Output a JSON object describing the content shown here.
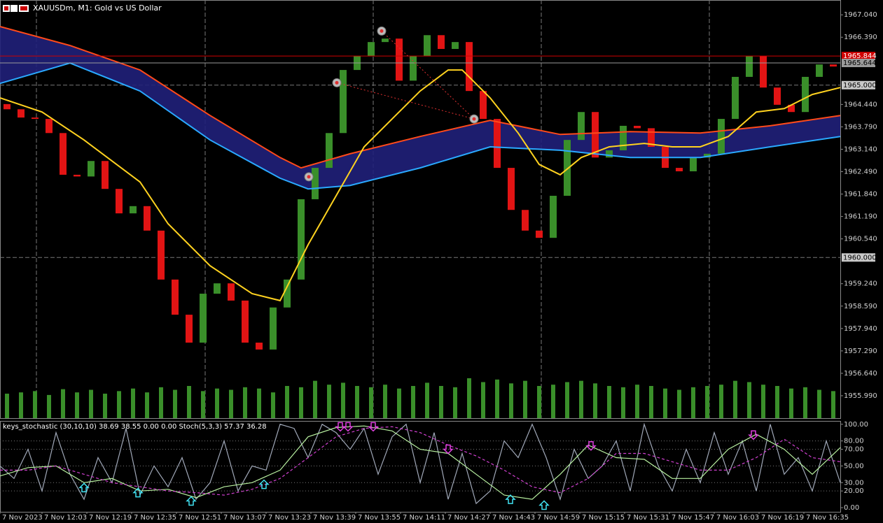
{
  "chart_data": [
    {
      "type": "candlestick",
      "title": "XAUUSDm, M1:  Gold vs US Dollar",
      "x": [
        2.5,
        7.5,
        12.5,
        17.5,
        22.5,
        27.5,
        32.5,
        37.5,
        42.5,
        47.5,
        52.5,
        57.5,
        62.5,
        67.5,
        72.5,
        77.5,
        82.5,
        87.5,
        92.5,
        97.5,
        102.5,
        107.5,
        112.5,
        117.5,
        122.5,
        127.5,
        132.5,
        137.5,
        142.5,
        147.5,
        152.5,
        157.5,
        162.5,
        167.5,
        172.5,
        177.5,
        182.5,
        187.5,
        192.5,
        197.5,
        202.5,
        207.5,
        212.5,
        217.5,
        222.5,
        227.5,
        232.5,
        237.5,
        242.5,
        247.5,
        252.5,
        257.5,
        262.5,
        267.5,
        272.5,
        277.5,
        282.5,
        287.5,
        292.5,
        297.5
      ],
      "open": [
        1964.45,
        1964.3,
        1964.06,
        1964.02,
        1963.61,
        1962.4,
        1962.35,
        1962.8,
        1961.99,
        1961.28,
        1961.49,
        1960.78,
        1959.36,
        1958.34,
        1957.53,
        1958.95,
        1959.25,
        1958.75,
        1957.53,
        1957.33,
        1958.55,
        1959.36,
        1961.69,
        1962.6,
        1963.61,
        1965.44,
        1965.84,
        1966.25,
        1966.35,
        1965.13,
        1965.84,
        1966.45,
        1966.05,
        1966.25,
        1964.83,
        1964.02,
        1962.6,
        1961.38,
        1960.78,
        1960.57,
        1961.79,
        1963.41,
        1964.22,
        1962.9,
        1963.11,
        1963.82,
        1963.75,
        1963.21,
        1962.6,
        1962.5,
        1962.9,
        1963.01,
        1964.02,
        1965.24,
        1965.84,
        1964.93,
        1964.43,
        1964.22,
        1965.24,
        1965.6
      ],
      "close": [
        1964.3,
        1964.06,
        1964.02,
        1963.61,
        1962.4,
        1962.35,
        1962.8,
        1961.99,
        1961.28,
        1961.49,
        1960.78,
        1959.36,
        1958.34,
        1957.53,
        1958.95,
        1959.25,
        1958.75,
        1957.53,
        1957.33,
        1958.55,
        1959.36,
        1961.69,
        1962.6,
        1963.61,
        1965.44,
        1965.84,
        1966.25,
        1966.35,
        1965.13,
        1965.84,
        1966.45,
        1966.05,
        1966.25,
        1964.83,
        1964.02,
        1962.6,
        1961.38,
        1960.78,
        1960.57,
        1961.79,
        1963.41,
        1964.22,
        1962.9,
        1963.11,
        1963.82,
        1963.75,
        1963.21,
        1962.6,
        1962.5,
        1962.9,
        1963.01,
        1964.02,
        1965.24,
        1965.84,
        1964.93,
        1964.43,
        1964.22,
        1965.24,
        1965.6,
        1965.54
      ],
      "up_color": "#3a8f2a",
      "down_color": "#e21414",
      "xlim": [
        0,
        300
      ],
      "ylim": [
        1955.34,
        1967.47
      ],
      "xgrid": [
        13,
        73.25,
        133.25,
        193.25,
        253.25
      ],
      "yticks": [
        {
          "value": 1967.04,
          "label": "1967.040"
        },
        {
          "value": 1966.39,
          "label": "1966.390"
        },
        {
          "value": 1964.44,
          "label": "1964.440"
        },
        {
          "value": 1963.79,
          "label": "1963.790"
        },
        {
          "value": 1963.14,
          "label": "1963.140"
        },
        {
          "value": 1962.49,
          "label": "1962.490"
        },
        {
          "value": 1961.84,
          "label": "1961.840"
        },
        {
          "value": 1961.19,
          "label": "1961.190"
        },
        {
          "value": 1960.54,
          "label": "1960.540"
        },
        {
          "value": 1959.24,
          "label": "1959.240"
        },
        {
          "value": 1958.59,
          "label": "1958.590"
        },
        {
          "value": 1957.94,
          "label": "1957.940"
        },
        {
          "value": 1957.29,
          "label": "1957.290"
        },
        {
          "value": 1956.64,
          "label": "1956.640"
        },
        {
          "value": 1955.99,
          "label": "1955.990"
        }
      ],
      "ygrid": [
        {
          "value": 1965,
          "label": "1965.000"
        },
        {
          "value": 1960,
          "label": "1960.000"
        }
      ],
      "band_color": "#20207a",
      "lines": [
        {
          "color": "#ffd21f",
          "x": [
            0,
            15,
            30,
            50,
            60,
            75,
            90,
            100,
            110,
            120,
            130,
            140,
            150,
            160,
            165,
            175,
            185,
            192.5,
            200,
            207.5,
            217.5,
            230,
            240,
            250,
            260,
            270,
            280,
            290,
            300
          ],
          "values": [
            1964.63,
            1964.22,
            1963.41,
            1962.19,
            1960.98,
            1959.76,
            1958.95,
            1958.75,
            1960.37,
            1961.79,
            1963.21,
            1964.02,
            1964.83,
            1965.44,
            1965.44,
            1964.63,
            1963.61,
            1962.7,
            1962.4,
            1962.9,
            1963.21,
            1963.31,
            1963.21,
            1963.21,
            1963.51,
            1964.22,
            1964.32,
            1964.73,
            1964.93
          ]
        },
        {
          "color": "#ff4a1a",
          "x": [
            0,
            25,
            50,
            75,
            100,
            107.5,
            125,
            150,
            175,
            200,
            225,
            250,
            275,
            300
          ],
          "values": [
            1966.7,
            1966.15,
            1965.44,
            1964.12,
            1962.9,
            1962.6,
            1963.01,
            1963.51,
            1963.98,
            1963.57,
            1963.65,
            1963.61,
            1963.82,
            1964.12
          ]
        },
        {
          "color": "#2aa9ff",
          "x": [
            0,
            25,
            50,
            75,
            100,
            110,
            125,
            150,
            175,
            200,
            225,
            250,
            275,
            300
          ],
          "values": [
            1965.05,
            1965.64,
            1964.83,
            1963.41,
            1962.3,
            1961.99,
            1962.09,
            1962.6,
            1963.21,
            1963.11,
            1962.9,
            1962.9,
            1963.21,
            1963.51
          ]
        }
      ],
      "volume": {
        "color": "#3a8f2a",
        "lim": [
          0,
          100
        ],
        "values": [
          38,
          40,
          42,
          36,
          45,
          40,
          44,
          38,
          42,
          46,
          40,
          48,
          44,
          50,
          42,
          46,
          44,
          48,
          46,
          40,
          50,
          48,
          58,
          52,
          55,
          50,
          48,
          52,
          46,
          50,
          55,
          50,
          48,
          62,
          56,
          60,
          54,
          58,
          50,
          52,
          56,
          58,
          54,
          50,
          48,
          52,
          50,
          46,
          44,
          48,
          50,
          52,
          58,
          56,
          52,
          50,
          46,
          48,
          44,
          42
        ]
      },
      "trades": {
        "x": [
          110.25,
          120.25,
          136.25,
          169.25
        ],
        "values": [
          1962.34,
          1965.07,
          1966.57,
          1964.02
        ]
      },
      "price_lines": [
        {
          "value": 1965.844,
          "color": "#d00000"
        },
        {
          "value": 1965.644,
          "color": "#9a9a9a"
        }
      ]
    },
    {
      "type": "line",
      "title": "keys_stochastic (30,10,10) 38.69 38.55 0.00 0.00 Stoch(5,3,3) 57.37 36.28",
      "xlim": [
        0,
        300
      ],
      "ylim": [
        -5,
        104
      ],
      "xticks": [
        {
          "value": 0,
          "label": "7 Nov 2023"
        },
        {
          "value": 15,
          "label": "7 Nov 12:03"
        },
        {
          "value": 31,
          "label": "7 Nov 12:19"
        },
        {
          "value": 47,
          "label": "7 Nov 12:35"
        },
        {
          "value": 63,
          "label": "7 Nov 12:51"
        },
        {
          "value": 79,
          "label": "7 Nov 13:07"
        },
        {
          "value": 95,
          "label": "7 Nov 13:23"
        },
        {
          "value": 111,
          "label": "7 Nov 13:39"
        },
        {
          "value": 127,
          "label": "7 Nov 13:55"
        },
        {
          "value": 143,
          "label": "7 Nov 14:11"
        },
        {
          "value": 159,
          "label": "7 Nov 14:27"
        },
        {
          "value": 175,
          "label": "7 Nov 14:43"
        },
        {
          "value": 191,
          "label": "7 Nov 14:59"
        },
        {
          "value": 207,
          "label": "7 Nov 15:15"
        },
        {
          "value": 223,
          "label": "7 Nov 15:31"
        },
        {
          "value": 239,
          "label": "7 Nov 15:47"
        },
        {
          "value": 255,
          "label": "7 Nov 16:03"
        },
        {
          "value": 271,
          "label": "7 Nov 16:19"
        },
        {
          "value": 287,
          "label": "7 Nov 16:35"
        }
      ],
      "yticks": [
        {
          "value": 100,
          "label": "100.00"
        },
        {
          "value": 80,
          "label": "80.00"
        },
        {
          "value": 70,
          "label": "70.00"
        },
        {
          "value": 50,
          "label": "50.00"
        },
        {
          "value": 30,
          "label": "30.00"
        },
        {
          "value": 20,
          "label": "20.00"
        },
        {
          "value": 0,
          "label": "0.00"
        }
      ],
      "ygrid": [
        80,
        70,
        50,
        30,
        20
      ],
      "series": [
        {
          "color": "#a0a8b8",
          "x": [
            0,
            5,
            10,
            15,
            20,
            25,
            30,
            35,
            40,
            45,
            50,
            55,
            60,
            65,
            70,
            75,
            80,
            85,
            90,
            95,
            100,
            105,
            110,
            115,
            120,
            125,
            130,
            135,
            140,
            145,
            150,
            155,
            160,
            165,
            170,
            175,
            180,
            185,
            190,
            195,
            200,
            205,
            210,
            215,
            220,
            225,
            230,
            235,
            240,
            245,
            250,
            255,
            260,
            265,
            270,
            275,
            280,
            285,
            290,
            295,
            300
          ],
          "values": [
            50,
            35,
            70,
            20,
            90,
            40,
            10,
            60,
            30,
            95,
            15,
            50,
            25,
            60,
            10,
            30,
            80,
            20,
            50,
            45,
            100,
            95,
            60,
            100,
            90,
            70,
            95,
            40,
            85,
            100,
            30,
            90,
            10,
            65,
            5,
            20,
            80,
            60,
            100,
            60,
            10,
            70,
            35,
            50,
            80,
            20,
            100,
            50,
            20,
            70,
            30,
            90,
            40,
            80,
            20,
            100,
            40,
            60,
            20,
            80,
            30
          ]
        },
        {
          "color": "#b8f0a0",
          "x": [
            0,
            10,
            20,
            30,
            40,
            50,
            60,
            70,
            80,
            90,
            100,
            110,
            120,
            130,
            140,
            150,
            160,
            170,
            180,
            190,
            200,
            210,
            220,
            230,
            240,
            250,
            260,
            270,
            280,
            290,
            300
          ],
          "values": [
            38,
            48,
            50,
            30,
            35,
            20,
            22,
            12,
            25,
            30,
            45,
            85,
            96,
            98,
            92,
            70,
            65,
            40,
            15,
            10,
            40,
            75,
            60,
            58,
            35,
            35,
            70,
            88,
            70,
            40,
            72
          ]
        },
        {
          "color": "#d040d0",
          "dashed": true,
          "x": [
            0,
            10,
            20,
            30,
            40,
            50,
            60,
            70,
            80,
            90,
            100,
            110,
            120,
            130,
            140,
            150,
            160,
            170,
            180,
            190,
            200,
            210,
            220,
            230,
            240,
            250,
            260,
            270,
            280,
            290,
            300
          ],
          "values": [
            45,
            45,
            50,
            40,
            30,
            25,
            20,
            18,
            15,
            22,
            35,
            60,
            85,
            95,
            97,
            90,
            75,
            62,
            45,
            25,
            18,
            35,
            65,
            65,
            55,
            45,
            45,
            60,
            82,
            60,
            55
          ]
        }
      ],
      "buy_signals": {
        "color": "#40e0f0",
        "x": [
          30,
          49.25,
          68.25,
          94.25,
          182.25,
          194.25
        ],
        "values": [
          24,
          18,
          8,
          28,
          10,
          3
        ]
      },
      "sell_signals": {
        "color": "#e040e0",
        "x": [
          121.5,
          124.25,
          133.25,
          160,
          211,
          269
        ],
        "values": [
          97,
          97,
          97,
          70,
          74,
          87
        ]
      }
    }
  ]
}
